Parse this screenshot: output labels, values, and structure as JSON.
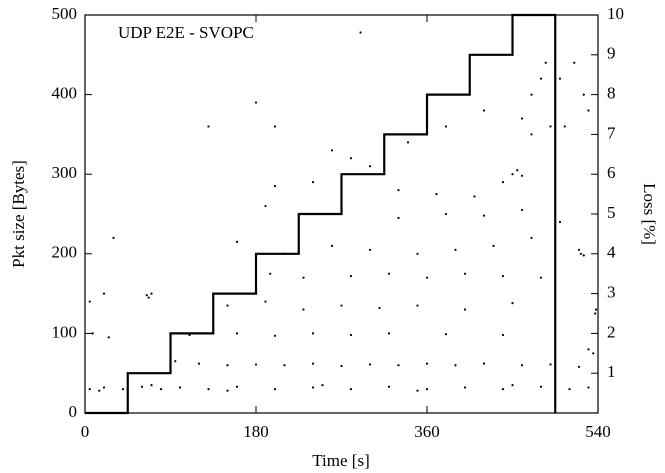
{
  "chart_data": {
    "type": "scatter",
    "annotation": "UDP E2E - SVOPC",
    "x_label": "Time [s]",
    "y_label": "Pkt size [Bytes]",
    "y2_label": "Loss [%]",
    "color": "#000000",
    "xlim": [
      0,
      540
    ],
    "xticks": [
      0,
      180,
      360,
      540
    ],
    "ylim": [
      0,
      500
    ],
    "yticks": [
      0,
      100,
      200,
      300,
      400,
      500
    ],
    "y2lim": [
      0,
      10
    ],
    "y2ticks": [
      1,
      2,
      3,
      4,
      5,
      6,
      7,
      8,
      9,
      10
    ],
    "x": [
      5,
      20,
      40,
      60,
      80,
      100,
      130,
      160,
      200,
      240,
      280,
      320,
      360,
      400,
      440,
      480,
      510,
      530,
      15,
      70,
      150,
      250,
      350,
      450,
      95,
      120,
      150,
      180,
      210,
      240,
      270,
      300,
      330,
      360,
      390,
      420,
      460,
      490,
      520,
      8,
      25,
      110,
      160,
      200,
      240,
      280,
      320,
      380,
      440,
      530,
      535,
      5,
      20,
      65,
      67,
      70,
      150,
      190,
      230,
      270,
      310,
      350,
      400,
      450,
      537,
      538,
      195,
      230,
      280,
      320,
      360,
      400,
      440,
      480,
      30,
      160,
      210,
      260,
      300,
      350,
      390,
      430,
      470,
      520,
      522,
      525,
      190,
      250,
      330,
      380,
      420,
      460,
      500,
      200,
      240,
      330,
      370,
      410,
      440,
      450,
      455,
      460,
      180,
      260,
      300,
      340,
      380,
      420,
      460,
      470,
      480,
      485,
      490,
      470,
      500,
      515,
      525,
      530,
      505,
      280,
      200,
      130,
      290
    ],
    "values": [
      30,
      32,
      30,
      33,
      30,
      32,
      30,
      33,
      30,
      32,
      30,
      33,
      30,
      32,
      30,
      33,
      30,
      32,
      28,
      35,
      28,
      35,
      28,
      35,
      65,
      62,
      60,
      61,
      60,
      62,
      59,
      61,
      60,
      62,
      60,
      62,
      60,
      61,
      58,
      100,
      95,
      98,
      100,
      97,
      100,
      98,
      100,
      99,
      98,
      80,
      75,
      140,
      150,
      148,
      145,
      150,
      135,
      140,
      130,
      135,
      132,
      135,
      130,
      138,
      125,
      130,
      175,
      170,
      172,
      175,
      170,
      175,
      172,
      170,
      220,
      215,
      200,
      210,
      205,
      200,
      205,
      210,
      220,
      205,
      200,
      198,
      260,
      250,
      245,
      250,
      248,
      255,
      240,
      285,
      290,
      280,
      275,
      272,
      290,
      300,
      305,
      298,
      390,
      330,
      310,
      340,
      360,
      380,
      370,
      400,
      420,
      440,
      360,
      350,
      420,
      440,
      400,
      380,
      360,
      320,
      360,
      360,
      478
    ],
    "step": {
      "axis": "y2",
      "x": [
        0,
        45,
        45,
        90,
        90,
        135,
        135,
        180,
        180,
        225,
        225,
        270,
        270,
        315,
        315,
        360,
        360,
        405,
        405,
        450,
        450,
        495,
        495
      ],
      "values": [
        0,
        0,
        1,
        1,
        2,
        2,
        3,
        3,
        4,
        4,
        5,
        5,
        6,
        6,
        7,
        7,
        8,
        8,
        9,
        9,
        10,
        10,
        0
      ]
    }
  }
}
